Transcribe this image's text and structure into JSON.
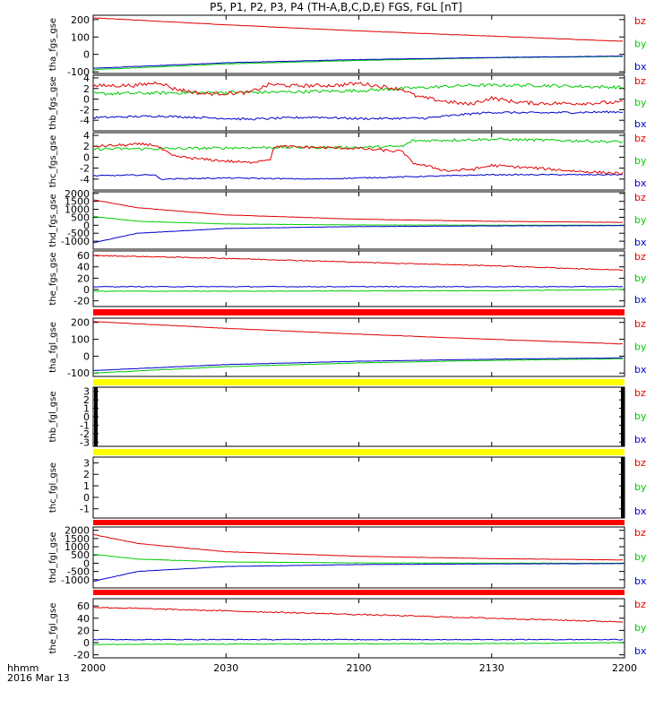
{
  "chart_data": {
    "type": "line",
    "title": "P5, P1, P2, P3, P4 (TH-A,B,C,D,E) FGS, FGL [nT]",
    "x_axis": {
      "ticks": [
        "2000",
        "2030",
        "2100",
        "2130",
        "2200"
      ],
      "tick_minutes": [
        0,
        30,
        60,
        90,
        120
      ],
      "range_minutes": [
        0,
        120
      ],
      "label_line1": "hhmm",
      "label_line2": "2016 Mar 13"
    },
    "legend": [
      "bz",
      "by",
      "bx"
    ],
    "colors": {
      "bz": "#e00000",
      "by": "#00cc00",
      "bx": "#0000cc",
      "missing_red": "#ff0000",
      "missing_yellow": "#ffff00"
    },
    "panels": [
      {
        "ylabel": "tha_fgs_gse",
        "ylim": [
          -110,
          225
        ],
        "yticks": [
          -100,
          0,
          100,
          200
        ],
        "series": [
          {
            "name": "bz",
            "x": [
              0,
              30,
              60,
              90,
              120
            ],
            "y": [
              210,
              170,
              135,
              105,
              75
            ],
            "noise": 1
          },
          {
            "name": "by",
            "x": [
              0,
              30,
              60,
              90,
              120
            ],
            "y": [
              -88,
              -55,
              -35,
              -20,
              -12
            ],
            "noise": 1
          },
          {
            "name": "bx",
            "x": [
              0,
              30,
              60,
              90,
              120
            ],
            "y": [
              -80,
              -48,
              -30,
              -18,
              -10
            ],
            "noise": 1
          }
        ]
      },
      {
        "ylabel": "thb_fgs_gse",
        "ylim": [
          -6,
          4.5
        ],
        "yticks": [
          -4,
          -2,
          0,
          2,
          4
        ],
        "series": [
          {
            "name": "bz",
            "x": [
              0,
              10,
              15,
              18,
              25,
              35,
              40,
              45,
              55,
              60,
              70,
              73,
              80,
              85,
              90,
              95,
              100,
              110,
              120
            ],
            "y": [
              2.5,
              2.6,
              3.2,
              2,
              1,
              1.2,
              2.8,
              2.5,
              2.6,
              3,
              1.8,
              0.5,
              -0.5,
              -1,
              0.2,
              -0.5,
              -0.8,
              -0.8,
              -0.6
            ],
            "noise": 0.35
          },
          {
            "name": "by",
            "x": [
              0,
              20,
              40,
              60,
              75,
              85,
              100,
              120
            ],
            "y": [
              1,
              1.2,
              1.3,
              1.6,
              2.2,
              2.6,
              2.6,
              2.2
            ],
            "noise": 0.3
          },
          {
            "name": "bx",
            "x": [
              0,
              15,
              35,
              50,
              60,
              75,
              85,
              90,
              100,
              120
            ],
            "y": [
              -3.5,
              -3.2,
              -3.8,
              -3.4,
              -3.7,
              -3.6,
              -2.8,
              -2.5,
              -2.6,
              -2.4
            ],
            "noise": 0.2
          }
        ]
      },
      {
        "ylabel": "thc_fgs_gse",
        "ylim": [
          -6,
          4.5
        ],
        "yticks": [
          -4,
          -2,
          0,
          2,
          4
        ],
        "series": [
          {
            "name": "bz",
            "x": [
              0,
              12,
              14,
              18,
              25,
              35,
              40,
              41,
              50,
              60,
              70,
              72,
              80,
              86,
              90,
              100,
              110,
              120
            ],
            "y": [
              2,
              2.4,
              2.2,
              0.2,
              -0.4,
              -1,
              -0.3,
              2,
              1.8,
              1.6,
              1,
              -1,
              -2.5,
              -2.2,
              -1.5,
              -2,
              -2.6,
              -3
            ],
            "noise": 0.25
          },
          {
            "name": "by",
            "x": [
              0,
              20,
              40,
              60,
              70,
              72,
              90,
              110,
              120
            ],
            "y": [
              1.5,
              1.6,
              1.8,
              1.8,
              2,
              3,
              3.3,
              3,
              2.8
            ],
            "noise": 0.25
          },
          {
            "name": "bx",
            "x": [
              0,
              14,
              15,
              30,
              50,
              60,
              80,
              90,
              100,
              120
            ],
            "y": [
              -3.4,
              -3.2,
              -4,
              -3.8,
              -4,
              -3.8,
              -3.4,
              -3.2,
              -3.2,
              -3.2
            ],
            "noise": 0.1
          }
        ]
      },
      {
        "ylabel": "thd_fgs_gse",
        "ylim": [
          -1500,
          2100
        ],
        "yticks": [
          -1000,
          -500,
          0,
          500,
          1000,
          1500,
          2000
        ],
        "ytick_labels": [
          "-1000",
          "-500",
          "0",
          "500",
          "1000",
          "1500",
          "2000"
        ],
        "series": [
          {
            "name": "bz",
            "x": [
              0,
              10,
              30,
              60,
              90,
              120
            ],
            "y": [
              1600,
              1100,
              650,
              380,
              250,
              180
            ],
            "noise": 10
          },
          {
            "name": "by",
            "x": [
              0,
              10,
              30,
              60,
              90,
              120
            ],
            "y": [
              550,
              250,
              80,
              20,
              5,
              0
            ],
            "noise": 8
          },
          {
            "name": "bx",
            "x": [
              0,
              10,
              30,
              60,
              90,
              120
            ],
            "y": [
              -1100,
              -500,
              -200,
              -80,
              -40,
              -20
            ],
            "noise": 8
          }
        ]
      },
      {
        "ylabel": "the_fgs_gse",
        "ylim": [
          -30,
          68
        ],
        "yticks": [
          -20,
          0,
          20,
          40,
          60
        ],
        "series": [
          {
            "name": "bz",
            "x": [
              0,
              30,
              60,
              90,
              120
            ],
            "y": [
              60,
              55,
              48,
              42,
              34
            ],
            "noise": 0.8
          },
          {
            "name": "by",
            "x": [
              0,
              30,
              60,
              90,
              120
            ],
            "y": [
              -3,
              -3,
              -2.5,
              -2,
              0
            ],
            "noise": 0.5
          },
          {
            "name": "bx",
            "x": [
              0,
              30,
              60,
              90,
              120
            ],
            "y": [
              5,
              5,
              5,
              5,
              5
            ],
            "noise": 0.6
          }
        ]
      },
      {
        "ylabel": "tha_fgl_gse",
        "ylim": [
          -120,
          225
        ],
        "yticks": [
          -100,
          0,
          100,
          200
        ],
        "series": [
          {
            "name": "bz",
            "x": [
              0,
              30,
              60,
              90,
              120
            ],
            "y": [
              205,
              165,
              130,
              100,
              72
            ],
            "noise": 1
          },
          {
            "name": "by",
            "x": [
              0,
              30,
              60,
              90,
              120
            ],
            "y": [
              -100,
              -62,
              -40,
              -25,
              -15
            ],
            "noise": 1
          },
          {
            "name": "bx",
            "x": [
              0,
              30,
              60,
              90,
              120
            ],
            "y": [
              -85,
              -50,
              -30,
              -18,
              -10
            ],
            "noise": 1
          }
        ]
      },
      {
        "ylabel": "thb_fgl_gse",
        "ylim": [
          -3.5,
          3.5
        ],
        "yticks": [
          -3,
          -2,
          -1,
          0,
          1,
          2,
          3
        ],
        "series": []
      },
      {
        "ylabel": "thc_fgl_gse",
        "ylim": [
          -1.8,
          3.5
        ],
        "yticks": [
          -1,
          0,
          1,
          2,
          3
        ],
        "series": []
      },
      {
        "ylabel": "thd_fgl_gse",
        "ylim": [
          -1500,
          2200
        ],
        "yticks": [
          -1000,
          -500,
          0,
          500,
          1000,
          1500,
          2000
        ],
        "ytick_labels": [
          "-1000",
          "-500",
          "0",
          "500",
          "1000",
          "1500",
          "2000"
        ],
        "series": [
          {
            "name": "bz",
            "x": [
              0,
              10,
              30,
              60,
              90,
              120
            ],
            "y": [
              1750,
              1200,
              700,
              420,
              280,
              200
            ],
            "noise": 10
          },
          {
            "name": "by",
            "x": [
              0,
              10,
              30,
              60,
              90,
              120
            ],
            "y": [
              550,
              250,
              80,
              20,
              5,
              0
            ],
            "noise": 8
          },
          {
            "name": "bx",
            "x": [
              0,
              10,
              30,
              60,
              90,
              120
            ],
            "y": [
              -1100,
              -500,
              -200,
              -80,
              -40,
              -20
            ],
            "noise": 8
          }
        ]
      },
      {
        "ylabel": "the_fgl_gse",
        "ylim": [
          -25,
          72
        ],
        "yticks": [
          -20,
          0,
          20,
          40,
          60
        ],
        "series": [
          {
            "name": "bz",
            "x": [
              0,
              30,
              60,
              90,
              120
            ],
            "y": [
              58,
              52,
              46,
              40,
              34
            ],
            "noise": 1
          },
          {
            "name": "by",
            "x": [
              0,
              30,
              60,
              90,
              120
            ],
            "y": [
              -3,
              -2.5,
              -2,
              -1.5,
              0
            ],
            "noise": 0.6
          },
          {
            "name": "bx",
            "x": [
              0,
              30,
              60,
              90,
              120
            ],
            "y": [
              5,
              5,
              5,
              5,
              5
            ],
            "noise": 0.7
          }
        ]
      }
    ],
    "gap_bars": [
      {
        "after_panel": 4,
        "color": "missing_red"
      },
      {
        "after_panel": 5,
        "color": "missing_yellow"
      },
      {
        "after_panel": 6,
        "color": "missing_yellow"
      },
      {
        "after_panel": 7,
        "color": "missing_red"
      },
      {
        "after_panel": 8,
        "color": "missing_red"
      }
    ]
  }
}
